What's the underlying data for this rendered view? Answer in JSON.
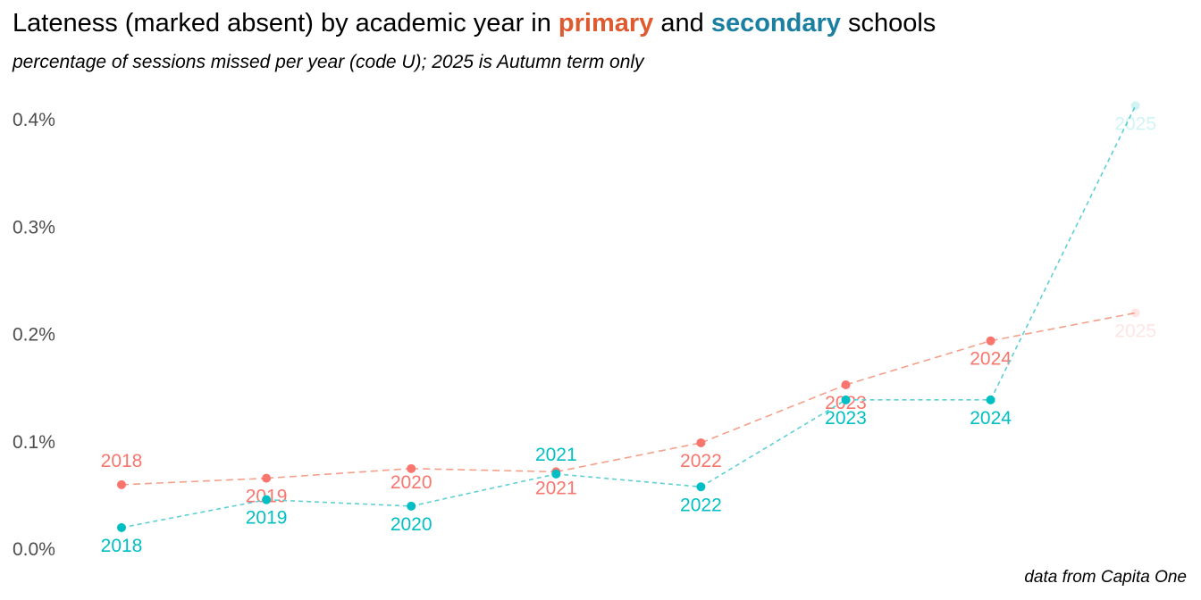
{
  "header": {
    "title_pre": "Lateness (marked absent) by academic year in ",
    "title_primary": "primary",
    "title_mid": " and ",
    "title_secondary": "secondary",
    "title_post": " schools",
    "subtitle": "percentage of sessions missed per year (code U); 2025 is Autumn term only",
    "caption": "data from Capita One"
  },
  "colors": {
    "primary": "#f8766d",
    "secondary": "#00bfc4",
    "primary_title": "#e05a2f",
    "secondary_title": "#1a7fa0",
    "primary_line": "#f4a08a",
    "secondary_line": "#5fcfd3"
  },
  "chart_data": {
    "type": "line",
    "title": "Lateness (marked absent) by academic year in primary and secondary schools",
    "subtitle": "percentage of sessions missed per year (code U); 2025 is Autumn term only",
    "x": [
      2018,
      2019,
      2020,
      2021,
      2022,
      2023,
      2024,
      2025
    ],
    "xlabel": "",
    "ylabel": "",
    "ylim": [
      0,
      0.42
    ],
    "yticks": [
      0.0,
      0.1,
      0.2,
      0.3,
      0.4
    ],
    "ytick_labels": [
      "0.0%",
      "0.1%",
      "0.2%",
      "0.3%",
      "0.4%"
    ],
    "x_axis_shown": false,
    "grid": false,
    "legend": "none (colored words in title)",
    "series": [
      {
        "name": "primary",
        "color": "#f8766d",
        "values": [
          0.06,
          0.066,
          0.075,
          0.072,
          0.099,
          0.153,
          0.194,
          0.22
        ],
        "labels": [
          "2018",
          "2019",
          "2020",
          "2021",
          "2022",
          "2023",
          "2024",
          "2025"
        ],
        "faded_last": true
      },
      {
        "name": "secondary",
        "color": "#00bfc4",
        "values": [
          0.02,
          0.046,
          0.04,
          0.07,
          0.058,
          0.139,
          0.139,
          0.413
        ],
        "labels": [
          "2018",
          "2019",
          "2020",
          "2021",
          "2022",
          "2023",
          "2024",
          "2025"
        ],
        "faded_last": true
      }
    ]
  }
}
